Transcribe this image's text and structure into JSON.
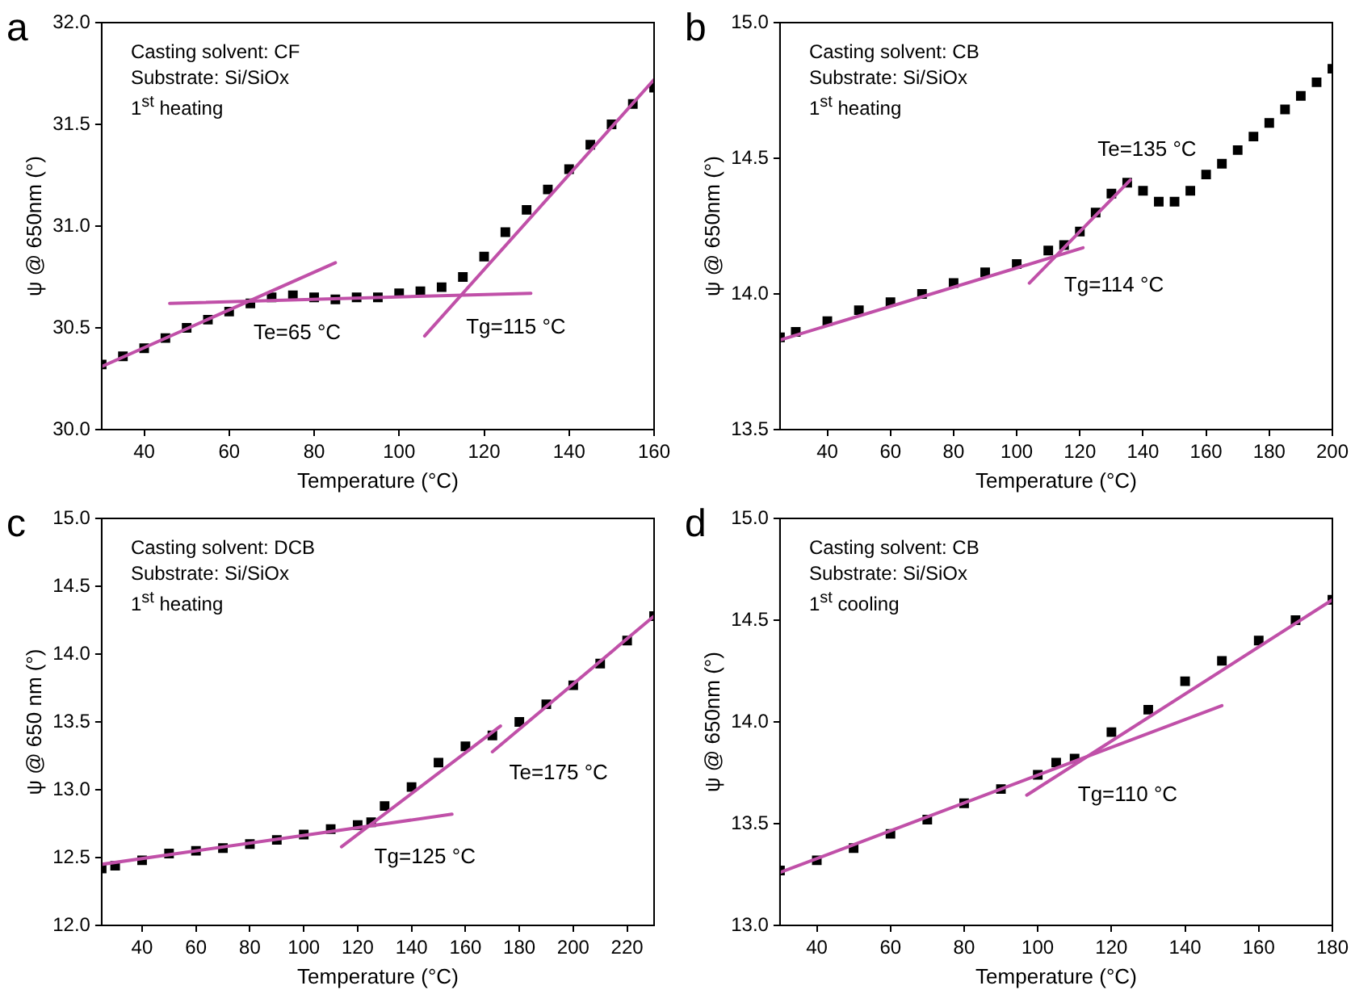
{
  "chart_data": [
    {
      "type": "scatter",
      "title": "a",
      "xlabel": "Temperature (°C)",
      "ylabel": "ψ @ 650nm (°)",
      "xlim": [
        30,
        160
      ],
      "xticks": [
        40,
        60,
        80,
        100,
        120,
        140,
        160
      ],
      "ylim": [
        30.0,
        32.0
      ],
      "yticks": [
        {
          "value": 30,
          "label": "30.0"
        },
        30.5,
        {
          "value": 31,
          "label": "31.0"
        },
        31.5,
        {
          "value": 32,
          "label": "32.0"
        }
      ],
      "grid": false,
      "legend": false,
      "annotations": [
        "Casting solvent: CF",
        "Substrate: Si/SiOx",
        "1$^{st}$ heating",
        {
          "text": "Te=65 °C",
          "x": 65,
          "y": 30.63
        },
        {
          "text": "Tg=115 °C",
          "x": 115,
          "y": 30.66
        }
      ],
      "series": [
        {
          "color": "#000000",
          "marker": "square",
          "x": [
            30,
            35,
            40,
            45,
            50,
            55,
            60,
            65,
            70,
            75,
            80,
            85,
            90,
            95,
            100,
            105,
            110,
            115,
            120,
            125,
            130,
            135,
            140,
            145,
            150,
            155,
            160
          ],
          "values": [
            30.32,
            30.36,
            30.4,
            30.45,
            30.5,
            30.54,
            30.58,
            30.62,
            30.65,
            30.66,
            30.65,
            30.64,
            30.65,
            30.65,
            30.67,
            30.68,
            30.7,
            30.75,
            30.85,
            30.97,
            31.08,
            31.18,
            31.28,
            31.4,
            31.5,
            31.6,
            31.68
          ]
        },
        {
          "type": "line",
          "color": "#c050a8",
          "marker": "none",
          "x": [
            30,
            85
          ],
          "values": [
            30.31,
            30.82
          ]
        },
        {
          "type": "line",
          "color": "#c050a8",
          "marker": "none",
          "x": [
            46,
            131
          ],
          "values": [
            30.62,
            30.67
          ]
        },
        {
          "type": "line",
          "color": "#c050a8",
          "marker": "none",
          "x": [
            106,
            160
          ],
          "values": [
            30.46,
            31.72
          ]
        }
      ]
    },
    {
      "type": "scatter",
      "title": "b",
      "xlabel": "Temperature (°C)",
      "ylabel": "ψ @ 650nm (°)",
      "xlim": [
        25,
        200
      ],
      "xticks": [
        40,
        60,
        80,
        100,
        120,
        140,
        160,
        180,
        200
      ],
      "ylim": [
        13.5,
        15.0
      ],
      "yticks": [
        13.5,
        {
          "value": 14,
          "label": "14.0"
        },
        14.5,
        {
          "value": 15,
          "label": "15.0"
        }
      ],
      "grid": false,
      "legend": false,
      "annotations": [
        "Casting solvent: CB",
        "Substrate: Si/SiOx",
        "1$^{st}$ heating",
        {
          "text": "Te=135 °C",
          "x": 135,
          "y": 14.41
        },
        {
          "text": "Tg=114 °C",
          "x": 114,
          "y": 14.15
        }
      ],
      "series": [
        {
          "color": "#000000",
          "marker": "square",
          "x": [
            25,
            30,
            40,
            50,
            60,
            70,
            80,
            90,
            100,
            110,
            115,
            120,
            125,
            130,
            135,
            140,
            145,
            150,
            155,
            160,
            165,
            170,
            175,
            180,
            185,
            190,
            195,
            200
          ],
          "values": [
            13.84,
            13.86,
            13.9,
            13.94,
            13.97,
            14.0,
            14.04,
            14.08,
            14.11,
            14.16,
            14.18,
            14.23,
            14.3,
            14.37,
            14.41,
            14.38,
            14.34,
            14.34,
            14.38,
            14.44,
            14.48,
            14.53,
            14.58,
            14.63,
            14.68,
            14.73,
            14.78,
            14.83
          ]
        },
        {
          "type": "line",
          "color": "#c050a8",
          "marker": "none",
          "x": [
            25,
            121
          ],
          "values": [
            13.83,
            14.17
          ]
        },
        {
          "type": "line",
          "color": "#c050a8",
          "marker": "none",
          "x": [
            104,
            136
          ],
          "values": [
            14.04,
            14.42
          ]
        }
      ]
    },
    {
      "type": "scatter",
      "title": "c",
      "xlabel": "Temperature (°C)",
      "ylabel": "ψ @ 650 nm (°)",
      "xlim": [
        25,
        230
      ],
      "xticks": [
        40,
        60,
        80,
        100,
        120,
        140,
        160,
        180,
        200,
        220
      ],
      "ylim": [
        12.0,
        15.0
      ],
      "yticks": [
        {
          "value": 12,
          "label": "12.0"
        },
        12.5,
        {
          "value": 13,
          "label": "13.0"
        },
        13.5,
        {
          "value": 14,
          "label": "14.0"
        },
        14.5,
        {
          "value": 15,
          "label": "15.0"
        }
      ],
      "grid": false,
      "legend": false,
      "annotations": [
        "Casting solvent: DCB",
        "Substrate: Si/SiOx",
        "1$^{st}$ heating",
        {
          "text": "Te=175 °C",
          "x": 175,
          "y": 13.36
        },
        {
          "text": "Tg=125 °C",
          "x": 125,
          "y": 12.74
        }
      ],
      "series": [
        {
          "color": "#000000",
          "marker": "square",
          "x": [
            25,
            30,
            40,
            50,
            60,
            70,
            80,
            90,
            100,
            110,
            120,
            125,
            130,
            140,
            150,
            160,
            170,
            180,
            190,
            200,
            210,
            220,
            230
          ],
          "values": [
            12.42,
            12.44,
            12.48,
            12.53,
            12.55,
            12.57,
            12.6,
            12.63,
            12.67,
            12.71,
            12.74,
            12.76,
            12.88,
            13.02,
            13.2,
            13.32,
            13.4,
            13.5,
            13.63,
            13.77,
            13.93,
            14.1,
            14.28
          ]
        },
        {
          "type": "line",
          "color": "#c050a8",
          "marker": "none",
          "x": [
            25,
            155
          ],
          "values": [
            12.45,
            12.82
          ]
        },
        {
          "type": "line",
          "color": "#c050a8",
          "marker": "none",
          "x": [
            114,
            173
          ],
          "values": [
            12.58,
            13.47
          ]
        },
        {
          "type": "line",
          "color": "#c050a8",
          "marker": "none",
          "x": [
            170,
            230
          ],
          "values": [
            13.28,
            14.28
          ]
        }
      ]
    },
    {
      "type": "scatter",
      "title": "d",
      "xlabel": "Temperature (°C)",
      "ylabel": "ψ @ 650nm (°)",
      "xlim": [
        30,
        180
      ],
      "xticks": [
        40,
        60,
        80,
        100,
        120,
        140,
        160,
        180
      ],
      "ylim": [
        13.0,
        15.0
      ],
      "yticks": [
        {
          "value": 13,
          "label": "13.0"
        },
        13.5,
        {
          "value": 14,
          "label": "14.0"
        },
        14.5,
        {
          "value": 15,
          "label": "15.0"
        }
      ],
      "grid": false,
      "legend": false,
      "annotations": [
        "Casting solvent: CB",
        "Substrate: Si/SiOx",
        "1$^{st}$ cooling",
        {
          "text": "Tg=110 °C",
          "x": 110,
          "y": 13.8
        }
      ],
      "series": [
        {
          "color": "#000000",
          "marker": "square",
          "x": [
            30,
            40,
            50,
            60,
            70,
            80,
            90,
            100,
            105,
            110,
            120,
            130,
            140,
            150,
            160,
            170,
            180
          ],
          "values": [
            13.27,
            13.32,
            13.38,
            13.45,
            13.52,
            13.6,
            13.67,
            13.74,
            13.8,
            13.82,
            13.95,
            14.06,
            14.2,
            14.3,
            14.4,
            14.5,
            14.6
          ]
        },
        {
          "type": "line",
          "color": "#c050a8",
          "marker": "none",
          "x": [
            30,
            150
          ],
          "values": [
            13.26,
            14.08
          ]
        },
        {
          "type": "line",
          "color": "#c050a8",
          "marker": "none",
          "x": [
            97,
            180
          ],
          "values": [
            13.64,
            14.6
          ]
        }
      ]
    }
  ]
}
